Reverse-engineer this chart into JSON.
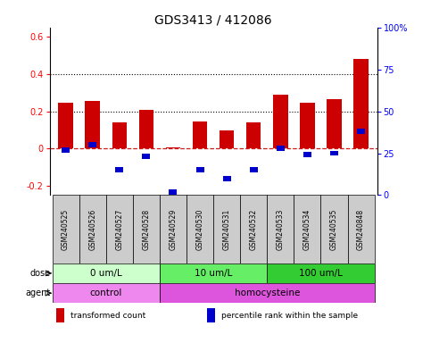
{
  "title": "GDS3413 / 412086",
  "samples": [
    "GSM240525",
    "GSM240526",
    "GSM240527",
    "GSM240528",
    "GSM240529",
    "GSM240530",
    "GSM240531",
    "GSM240532",
    "GSM240533",
    "GSM240534",
    "GSM240535",
    "GSM240848"
  ],
  "red_values": [
    0.245,
    0.255,
    0.14,
    0.21,
    0.005,
    0.145,
    0.095,
    0.14,
    0.29,
    0.245,
    0.265,
    0.48
  ],
  "blue_pct": [
    27,
    30,
    15,
    23,
    2,
    15,
    10,
    15,
    28,
    24,
    25,
    38
  ],
  "ylim_left": [
    -0.25,
    0.65
  ],
  "ylim_right": [
    0,
    100
  ],
  "yticks_left": [
    -0.2,
    0.0,
    0.2,
    0.4,
    0.6
  ],
  "yticks_right": [
    0,
    25,
    50,
    75,
    100
  ],
  "ytick_labels_left": [
    "-0.2",
    "0",
    "0.2",
    "0.4",
    "0.6"
  ],
  "ytick_labels_right": [
    "0",
    "25",
    "50",
    "75",
    "100%"
  ],
  "hlines_dotted": [
    0.2,
    0.4
  ],
  "hline_dash": 0.0,
  "dose_groups": [
    {
      "label": "0 um/L",
      "start": 0,
      "end": 4,
      "color": "#ccffcc"
    },
    {
      "label": "10 um/L",
      "start": 4,
      "end": 8,
      "color": "#66ee66"
    },
    {
      "label": "100 um/L",
      "start": 8,
      "end": 12,
      "color": "#33cc33"
    }
  ],
  "agent_groups": [
    {
      "label": "control",
      "start": 0,
      "end": 4,
      "color": "#ee88ee"
    },
    {
      "label": "homocysteine",
      "start": 4,
      "end": 12,
      "color": "#dd55dd"
    }
  ],
  "legend_items": [
    {
      "label": "transformed count",
      "color": "#cc0000"
    },
    {
      "label": "percentile rank within the sample",
      "color": "#0000cc"
    }
  ],
  "bar_color": "#cc0000",
  "blue_color": "#0000cc",
  "red_hline_color": "#cc0000",
  "sample_box_color": "#cccccc",
  "title_fontsize": 10,
  "tick_fontsize": 7,
  "sample_fontsize": 5.5,
  "group_fontsize": 7.5,
  "legend_fontsize": 6.5,
  "side_label_fontsize": 7
}
